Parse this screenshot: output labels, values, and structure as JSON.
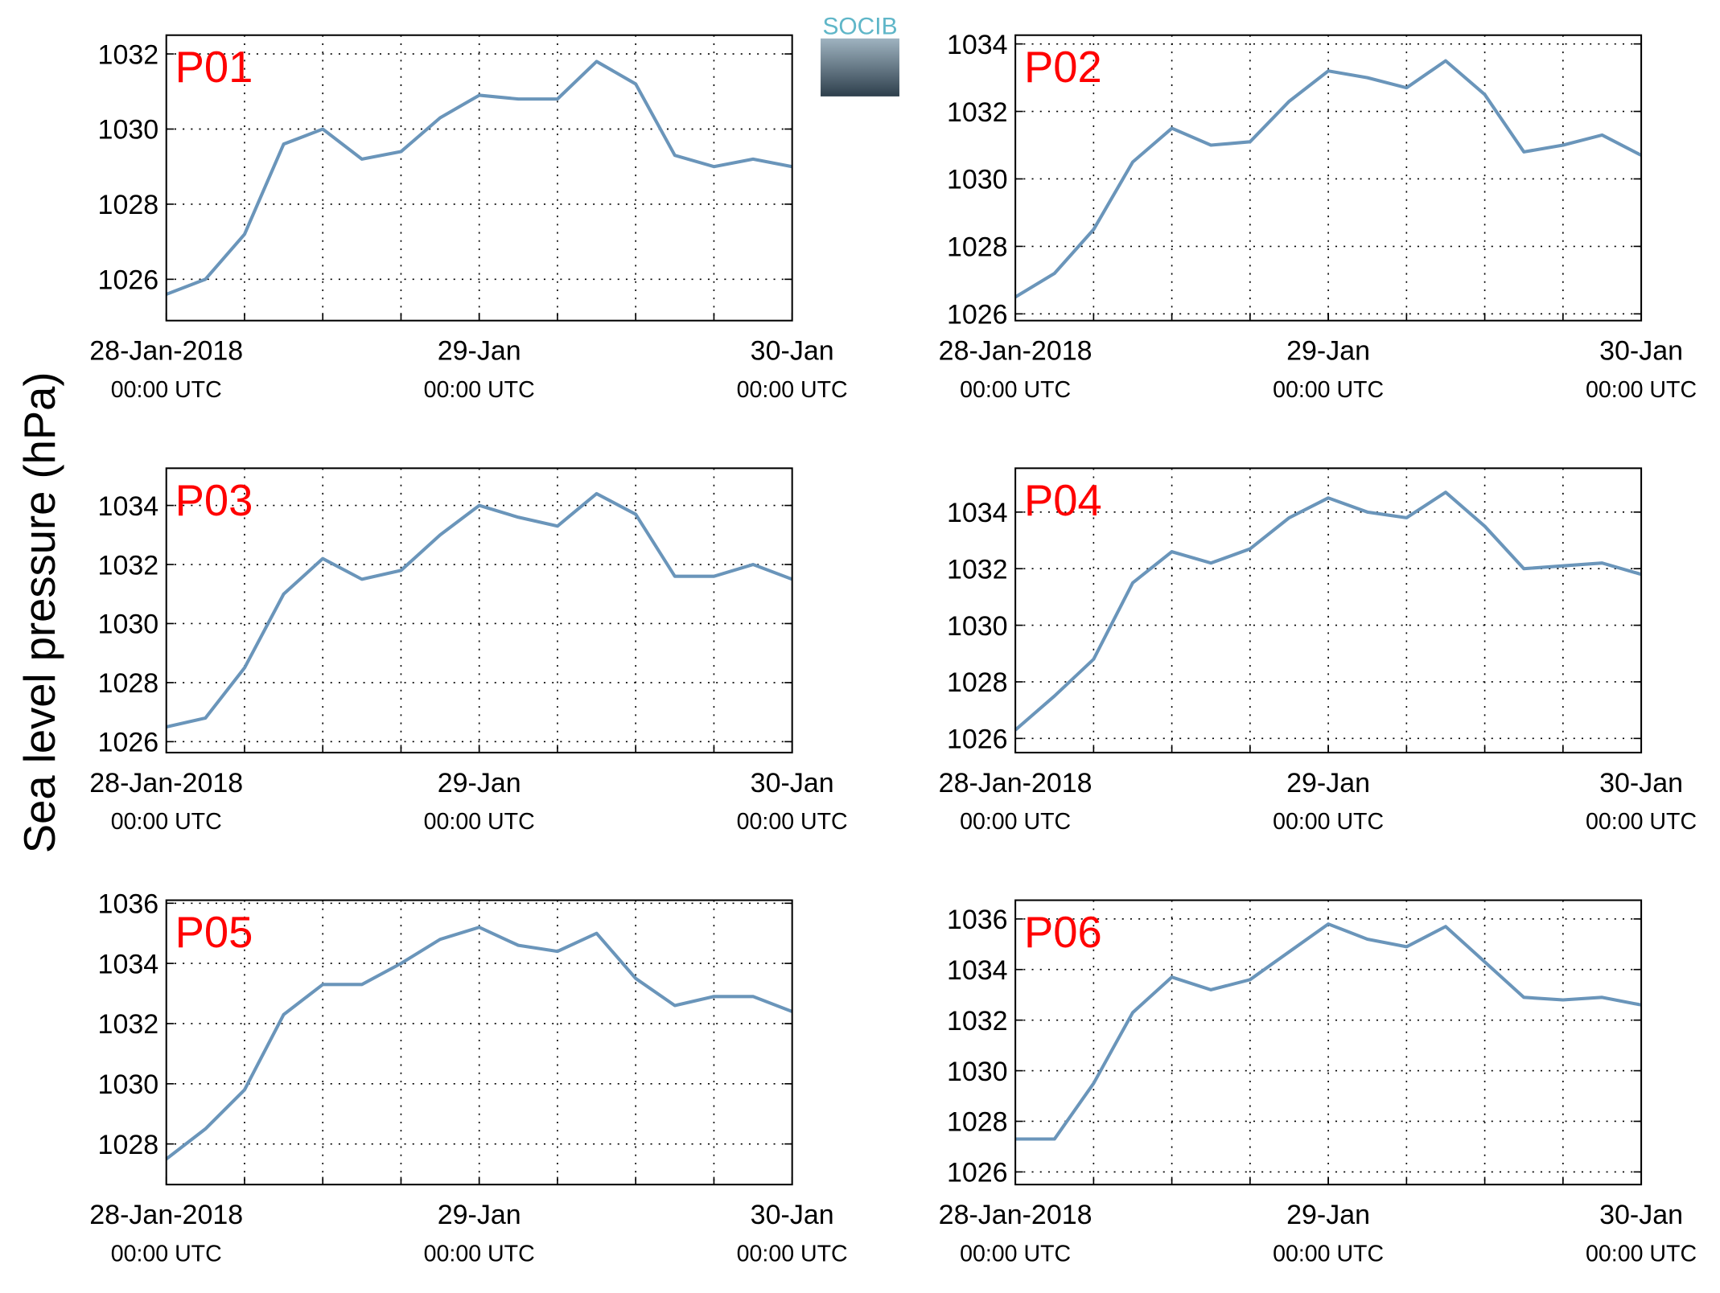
{
  "ylabel": "Sea level pressure (hPa)",
  "logo": "SOCIB",
  "chart_data": [
    {
      "type": "line",
      "title": "P01",
      "color": "#6a95ba",
      "grid": true,
      "x": [
        "2018-01-28T00:00",
        "2018-01-28T03:00",
        "2018-01-28T06:00",
        "2018-01-28T09:00",
        "2018-01-28T12:00",
        "2018-01-28T15:00",
        "2018-01-28T18:00",
        "2018-01-28T21:00",
        "2018-01-29T00:00",
        "2018-01-29T03:00",
        "2018-01-29T06:00",
        "2018-01-29T09:00",
        "2018-01-29T12:00",
        "2018-01-29T15:00",
        "2018-01-29T18:00",
        "2018-01-29T21:00",
        "2018-01-30T00:00"
      ],
      "values": [
        1025.6,
        1026.0,
        1027.2,
        1029.6,
        1030.0,
        1029.2,
        1029.4,
        1030.3,
        1030.9,
        1030.8,
        1030.8,
        1031.8,
        1031.2,
        1029.3,
        1029.0,
        1029.2,
        1029.0
      ],
      "xlim": [
        "2018-01-28T00:00",
        "2018-01-30T00:00"
      ],
      "xticks": [
        {
          "value": "2018-01-28T00:00",
          "label": [
            "28-Jan-2018",
            "00:00 UTC"
          ]
        },
        {
          "value": "2018-01-29T00:00",
          "label": [
            "29-Jan",
            "00:00 UTC"
          ]
        },
        {
          "value": "2018-01-30T00:00",
          "label": [
            "30-Jan",
            "00:00 UTC"
          ]
        }
      ],
      "xgrid": [
        "2018-01-28T06:00",
        "2018-01-28T12:00",
        "2018-01-28T18:00",
        "2018-01-29T00:00",
        "2018-01-29T06:00",
        "2018-01-29T12:00",
        "2018-01-29T18:00"
      ],
      "ylim": [
        1024.9,
        1032.5
      ],
      "yticks": [
        1026,
        1028,
        1030,
        1032
      ]
    },
    {
      "type": "line",
      "title": "P02",
      "color": "#6a95ba",
      "grid": true,
      "x": [
        "2018-01-28T00:00",
        "2018-01-28T03:00",
        "2018-01-28T06:00",
        "2018-01-28T09:00",
        "2018-01-28T12:00",
        "2018-01-28T15:00",
        "2018-01-28T18:00",
        "2018-01-28T21:00",
        "2018-01-29T00:00",
        "2018-01-29T03:00",
        "2018-01-29T06:00",
        "2018-01-29T09:00",
        "2018-01-29T12:00",
        "2018-01-29T15:00",
        "2018-01-29T18:00",
        "2018-01-29T21:00",
        "2018-01-30T00:00"
      ],
      "values": [
        1026.5,
        1027.2,
        1028.5,
        1030.5,
        1031.5,
        1031.0,
        1031.1,
        1032.3,
        1033.2,
        1033.0,
        1032.7,
        1033.5,
        1032.5,
        1030.8,
        1031.0,
        1031.3,
        1030.7
      ],
      "xlim": [
        "2018-01-28T00:00",
        "2018-01-30T00:00"
      ],
      "xticks": [
        {
          "value": "2018-01-28T00:00",
          "label": [
            "28-Jan-2018",
            "00:00 UTC"
          ]
        },
        {
          "value": "2018-01-29T00:00",
          "label": [
            "29-Jan",
            "00:00 UTC"
          ]
        },
        {
          "value": "2018-01-30T00:00",
          "label": [
            "30-Jan",
            "00:00 UTC"
          ]
        }
      ],
      "xgrid": [
        "2018-01-28T06:00",
        "2018-01-28T12:00",
        "2018-01-28T18:00",
        "2018-01-29T00:00",
        "2018-01-29T06:00",
        "2018-01-29T12:00",
        "2018-01-29T18:00"
      ],
      "ylim": [
        1025.8,
        1034.26
      ],
      "yticks": [
        1026,
        1028,
        1030,
        1032,
        1034
      ]
    },
    {
      "type": "line",
      "title": "P03",
      "color": "#6a95ba",
      "grid": true,
      "x": [
        "2018-01-28T00:00",
        "2018-01-28T03:00",
        "2018-01-28T06:00",
        "2018-01-28T09:00",
        "2018-01-28T12:00",
        "2018-01-28T15:00",
        "2018-01-28T18:00",
        "2018-01-28T21:00",
        "2018-01-29T00:00",
        "2018-01-29T03:00",
        "2018-01-29T06:00",
        "2018-01-29T09:00",
        "2018-01-29T12:00",
        "2018-01-29T15:00",
        "2018-01-29T18:00",
        "2018-01-29T21:00",
        "2018-01-30T00:00"
      ],
      "values": [
        1026.5,
        1026.8,
        1028.5,
        1031.0,
        1032.2,
        1031.5,
        1031.8,
        1033.0,
        1034.0,
        1033.6,
        1033.3,
        1034.4,
        1033.7,
        1031.6,
        1031.6,
        1032.0,
        1031.5
      ],
      "xlim": [
        "2018-01-28T00:00",
        "2018-01-30T00:00"
      ],
      "xticks": [
        {
          "value": "2018-01-28T00:00",
          "label": [
            "28-Jan-2018",
            "00:00 UTC"
          ]
        },
        {
          "value": "2018-01-29T00:00",
          "label": [
            "29-Jan",
            "00:00 UTC"
          ]
        },
        {
          "value": "2018-01-30T00:00",
          "label": [
            "30-Jan",
            "00:00 UTC"
          ]
        }
      ],
      "xgrid": [
        "2018-01-28T06:00",
        "2018-01-28T12:00",
        "2018-01-28T18:00",
        "2018-01-29T00:00",
        "2018-01-29T06:00",
        "2018-01-29T12:00",
        "2018-01-29T18:00"
      ],
      "ylim": [
        1025.63,
        1035.26
      ],
      "yticks": [
        1026,
        1028,
        1030,
        1032,
        1034
      ]
    },
    {
      "type": "line",
      "title": "P04",
      "color": "#6a95ba",
      "grid": true,
      "x": [
        "2018-01-28T00:00",
        "2018-01-28T03:00",
        "2018-01-28T06:00",
        "2018-01-28T09:00",
        "2018-01-28T12:00",
        "2018-01-28T15:00",
        "2018-01-28T18:00",
        "2018-01-28T21:00",
        "2018-01-29T00:00",
        "2018-01-29T03:00",
        "2018-01-29T06:00",
        "2018-01-29T09:00",
        "2018-01-29T12:00",
        "2018-01-29T15:00",
        "2018-01-29T18:00",
        "2018-01-29T21:00",
        "2018-01-30T00:00"
      ],
      "values": [
        1026.3,
        1027.5,
        1028.8,
        1031.5,
        1032.6,
        1032.2,
        1032.7,
        1033.8,
        1034.5,
        1034.0,
        1033.8,
        1034.7,
        1033.5,
        1032.0,
        1032.1,
        1032.2,
        1031.8
      ],
      "xlim": [
        "2018-01-28T00:00",
        "2018-01-30T00:00"
      ],
      "xticks": [
        {
          "value": "2018-01-28T00:00",
          "label": [
            "28-Jan-2018",
            "00:00 UTC"
          ]
        },
        {
          "value": "2018-01-29T00:00",
          "label": [
            "29-Jan",
            "00:00 UTC"
          ]
        },
        {
          "value": "2018-01-30T00:00",
          "label": [
            "30-Jan",
            "00:00 UTC"
          ]
        }
      ],
      "xgrid": [
        "2018-01-28T06:00",
        "2018-01-28T12:00",
        "2018-01-28T18:00",
        "2018-01-29T00:00",
        "2018-01-29T06:00",
        "2018-01-29T12:00",
        "2018-01-29T18:00"
      ],
      "ylim": [
        1025.5,
        1035.55
      ],
      "yticks": [
        1026,
        1028,
        1030,
        1032,
        1034
      ]
    },
    {
      "type": "line",
      "title": "P05",
      "color": "#6a95ba",
      "grid": true,
      "x": [
        "2018-01-28T00:00",
        "2018-01-28T03:00",
        "2018-01-28T06:00",
        "2018-01-28T09:00",
        "2018-01-28T12:00",
        "2018-01-28T15:00",
        "2018-01-28T18:00",
        "2018-01-28T21:00",
        "2018-01-29T00:00",
        "2018-01-29T03:00",
        "2018-01-29T06:00",
        "2018-01-29T09:00",
        "2018-01-29T12:00",
        "2018-01-29T15:00",
        "2018-01-29T18:00",
        "2018-01-29T21:00",
        "2018-01-30T00:00"
      ],
      "values": [
        1027.5,
        1028.5,
        1029.8,
        1032.3,
        1033.3,
        1033.3,
        1034.0,
        1034.8,
        1035.2,
        1034.6,
        1034.4,
        1035.0,
        1033.5,
        1032.6,
        1032.9,
        1032.9,
        1032.4
      ],
      "xlim": [
        "2018-01-28T00:00",
        "2018-01-30T00:00"
      ],
      "xticks": [
        {
          "value": "2018-01-28T00:00",
          "label": [
            "28-Jan-2018",
            "00:00 UTC"
          ]
        },
        {
          "value": "2018-01-29T00:00",
          "label": [
            "29-Jan",
            "00:00 UTC"
          ]
        },
        {
          "value": "2018-01-30T00:00",
          "label": [
            "30-Jan",
            "00:00 UTC"
          ]
        }
      ],
      "xgrid": [
        "2018-01-28T06:00",
        "2018-01-28T12:00",
        "2018-01-28T18:00",
        "2018-01-29T00:00",
        "2018-01-29T06:00",
        "2018-01-29T12:00",
        "2018-01-29T18:00"
      ],
      "ylim": [
        1026.65,
        1036.1
      ],
      "yticks": [
        1028,
        1030,
        1032,
        1034,
        1036
      ]
    },
    {
      "type": "line",
      "title": "P06",
      "color": "#6a95ba",
      "grid": true,
      "x": [
        "2018-01-28T00:00",
        "2018-01-28T03:00",
        "2018-01-28T06:00",
        "2018-01-28T09:00",
        "2018-01-28T12:00",
        "2018-01-28T15:00",
        "2018-01-28T18:00",
        "2018-01-28T21:00",
        "2018-01-29T00:00",
        "2018-01-29T03:00",
        "2018-01-29T06:00",
        "2018-01-29T09:00",
        "2018-01-29T12:00",
        "2018-01-29T15:00",
        "2018-01-29T18:00",
        "2018-01-29T21:00",
        "2018-01-30T00:00"
      ],
      "values": [
        1027.3,
        1027.3,
        1029.5,
        1032.3,
        1033.7,
        1033.2,
        1033.6,
        1034.7,
        1035.8,
        1035.2,
        1034.9,
        1035.7,
        1034.3,
        1032.9,
        1032.8,
        1032.9,
        1032.6
      ],
      "xlim": [
        "2018-01-28T00:00",
        "2018-01-30T00:00"
      ],
      "xticks": [
        {
          "value": "2018-01-28T00:00",
          "label": [
            "28-Jan-2018",
            "00:00 UTC"
          ]
        },
        {
          "value": "2018-01-29T00:00",
          "label": [
            "29-Jan",
            "00:00 UTC"
          ]
        },
        {
          "value": "2018-01-30T00:00",
          "label": [
            "30-Jan",
            "00:00 UTC"
          ]
        }
      ],
      "xgrid": [
        "2018-01-28T06:00",
        "2018-01-28T12:00",
        "2018-01-28T18:00",
        "2018-01-29T00:00",
        "2018-01-29T06:00",
        "2018-01-29T12:00",
        "2018-01-29T18:00"
      ],
      "ylim": [
        1025.5,
        1036.74
      ],
      "yticks": [
        1026,
        1028,
        1030,
        1032,
        1034,
        1036
      ]
    }
  ]
}
